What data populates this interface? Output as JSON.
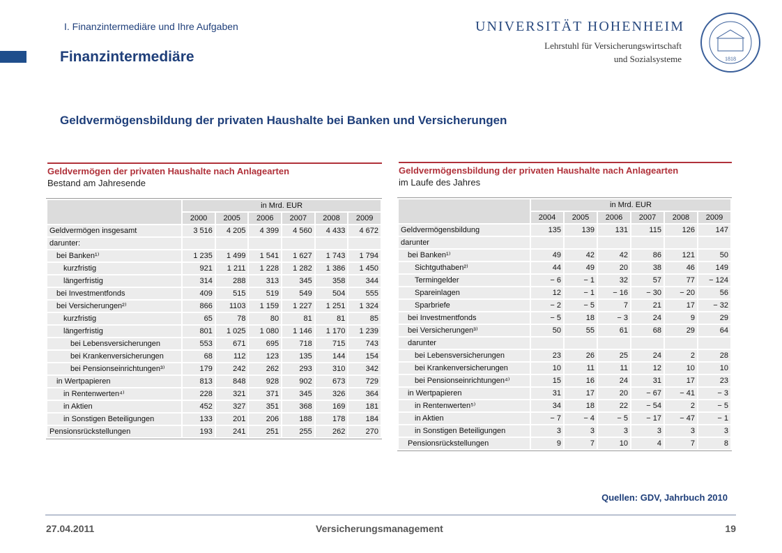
{
  "header": {
    "section": "I. Finanzintermediäre und Ihre Aufgaben",
    "title": "Finanzintermediäre",
    "university": "UNIVERSITÄT HOHENHEIM",
    "chair_line1": "Lehrstuhl für Versicherungswirtschaft",
    "chair_line2": "und Sozialsysteme",
    "logo_year": "1818"
  },
  "subtitle": "Geldvermögensbildung der privaten Haushalte bei Banken und Versicherungen",
  "table1": {
    "title": "Geldvermögen der privaten Haushalte nach Anlagearten",
    "subtitle": "Bestand am Jahresende",
    "unit": "in Mrd. EUR",
    "columns": [
      "2000",
      "2005",
      "2006",
      "2007",
      "2008",
      "2009"
    ],
    "rows": [
      {
        "label": "Geldvermögen insgesamt",
        "values": [
          "3 516",
          "4 205",
          "4 399",
          "4 560",
          "4 433",
          "4 672"
        ]
      },
      {
        "label": "darunter:"
      },
      {
        "label": "bei Banken¹⁾",
        "values": [
          "1 235",
          "1 499",
          "1 541",
          "1 627",
          "1 743",
          "1 794"
        ]
      },
      {
        "label": "kurzfristig",
        "values": [
          "921",
          "1 211",
          "1 228",
          "1 282",
          "1 386",
          "1 450"
        ]
      },
      {
        "label": "längerfristig",
        "values": [
          "314",
          "288",
          "313",
          "345",
          "358",
          "344"
        ]
      },
      {
        "label": "bei Investmentfonds",
        "values": [
          "409",
          "515",
          "519",
          "549",
          "504",
          "555"
        ]
      },
      {
        "label": "bei Versicherungen²⁾",
        "values": [
          "866",
          "1103",
          "1 159",
          "1 227",
          "1 251",
          "1 324"
        ]
      },
      {
        "label": "kurzfristig",
        "values": [
          "65",
          "78",
          "80",
          "81",
          "81",
          "85"
        ]
      },
      {
        "label": "längerfristig",
        "values": [
          "801",
          "1 025",
          "1 080",
          "1 146",
          "1 170",
          "1 239"
        ]
      },
      {
        "label": "bei Lebensversicherungen",
        "values": [
          "553",
          "671",
          "695",
          "718",
          "715",
          "743"
        ]
      },
      {
        "label": "bei Krankenversicherungen",
        "values": [
          "68",
          "112",
          "123",
          "135",
          "144",
          "154"
        ]
      },
      {
        "label": "bei Pensionseinrichtungen³⁾",
        "values": [
          "179",
          "242",
          "262",
          "293",
          "310",
          "342"
        ]
      },
      {
        "label": "in Wertpapieren",
        "values": [
          "813",
          "848",
          "928",
          "902",
          "673",
          "729"
        ]
      },
      {
        "label": "in Rentenwerten⁴⁾",
        "values": [
          "228",
          "321",
          "371",
          "345",
          "326",
          "364"
        ]
      },
      {
        "label": "in Aktien",
        "values": [
          "452",
          "327",
          "351",
          "368",
          "169",
          "181"
        ]
      },
      {
        "label": "in Sonstigen Beteiligungen",
        "values": [
          "133",
          "201",
          "206",
          "188",
          "178",
          "184"
        ]
      },
      {
        "label": "Pensionsrückstellungen",
        "values": [
          "193",
          "241",
          "251",
          "255",
          "262",
          "270"
        ]
      }
    ]
  },
  "table2": {
    "title": "Geldvermögensbildung der privaten Haushalte nach Anlagearten",
    "subtitle": "im Laufe des Jahres",
    "unit": "in Mrd. EUR",
    "columns": [
      "2004",
      "2005",
      "2006",
      "2007",
      "2008",
      "2009"
    ],
    "rows": [
      {
        "label": "Geldvermögensbildung",
        "values": [
          "135",
          "139",
          "131",
          "115",
          "126",
          "147"
        ]
      },
      {
        "label": "darunter"
      },
      {
        "label": "bei Banken¹⁾",
        "values": [
          "49",
          "42",
          "42",
          "86",
          "121",
          "50"
        ]
      },
      {
        "label": "Sichtguthaben²⁾",
        "values": [
          "44",
          "49",
          "20",
          "38",
          "46",
          "149"
        ]
      },
      {
        "label": "Termingelder",
        "values": [
          "− 6",
          "− 1",
          "32",
          "57",
          "77",
          "− 124"
        ]
      },
      {
        "label": "Spareinlagen",
        "values": [
          "12",
          "− 1",
          "− 16",
          "− 30",
          "− 20",
          "56"
        ]
      },
      {
        "label": "Sparbriefe",
        "values": [
          "− 2",
          "− 5",
          "7",
          "21",
          "17",
          "− 32"
        ]
      },
      {
        "label": "bei Investmentfonds",
        "values": [
          "− 5",
          "18",
          "− 3",
          "24",
          "9",
          "29"
        ]
      },
      {
        "label": "bei Versicherungen³⁾",
        "values": [
          "50",
          "55",
          "61",
          "68",
          "29",
          "64"
        ]
      },
      {
        "label": "darunter"
      },
      {
        "label": "bei Lebensversicherungen",
        "values": [
          "23",
          "26",
          "25",
          "24",
          "2",
          "28"
        ]
      },
      {
        "label": "bei Krankenversicherungen",
        "values": [
          "10",
          "11",
          "11",
          "12",
          "10",
          "10"
        ]
      },
      {
        "label": "bei Pensionseinrichtungen⁴⁾",
        "values": [
          "15",
          "16",
          "24",
          "31",
          "17",
          "23"
        ]
      },
      {
        "label": "in Wertpapieren",
        "values": [
          "31",
          "17",
          "20",
          "− 67",
          "− 41",
          "− 3"
        ]
      },
      {
        "label": "in Rentenwerten⁵⁾",
        "values": [
          "34",
          "18",
          "22",
          "− 54",
          "2",
          "− 5"
        ]
      },
      {
        "label": "in Aktien",
        "values": [
          "− 7",
          "− 4",
          "− 5",
          "− 17",
          "− 47",
          "− 1"
        ]
      },
      {
        "label": "in Sonstigen Beteiligungen",
        "values": [
          "3",
          "3",
          "3",
          "3",
          "3",
          "3"
        ]
      },
      {
        "label": "Pensionsrückstellungen",
        "values": [
          "9",
          "7",
          "10",
          "4",
          "7",
          "8"
        ]
      }
    ]
  },
  "source": "Quellen: GDV, Jahrbuch 2010",
  "footer": {
    "date": "27.04.2011",
    "center": "Versicherungsmanagement",
    "page": "19"
  }
}
